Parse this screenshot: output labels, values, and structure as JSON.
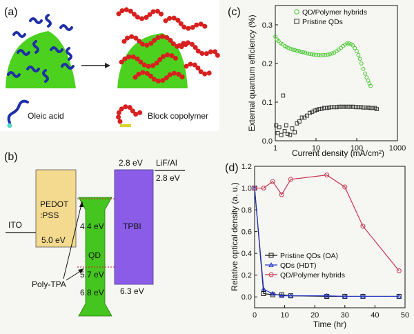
{
  "panel_a": {
    "label": "(a)",
    "legend_oleic": "Oleic acid",
    "legend_block": "Block copolymer",
    "colors": {
      "particle": "#4cd11e",
      "oleic": "#1f2fa8",
      "polymer": "#d82020",
      "head_oleic": "#58d8c8",
      "head_polymer": "#d8d82a"
    }
  },
  "panel_b": {
    "label": "(b)",
    "ito": "ITO",
    "pedot_line1": "PEDOT",
    "pedot_line2": ":PSS",
    "pedot_level": "5.0 eV",
    "qd": "QD",
    "qd_top": "4.4 eV",
    "qd_mid": "5.7 eV",
    "qd_bottom": "6.8 eV",
    "poly_tpa": "Poly-TPA",
    "tpbi": "TPBI",
    "tpbi_top": "2.8 eV",
    "tpbi_bottom": "6.3 eV",
    "lif": "LiF/Al",
    "lif_level": "2.8 eV",
    "colors": {
      "pedot": "#f3da8e",
      "qd": "#45c51f",
      "tpbi": "#8a5ce8",
      "dashed": "#c8192b"
    }
  },
  "chart_data": [
    {
      "type": "scatter",
      "panel_label": "(c)",
      "xlabel": "Current density (mA/cm²)",
      "ylabel": "External quantum efficiency (%)",
      "x_scale": "log",
      "xlim": [
        1,
        1000
      ],
      "ylim": [
        0,
        0.35
      ],
      "x_ticks": [
        "1",
        "10",
        "100",
        "1000"
      ],
      "y_ticks": [
        "0.0",
        "0.1",
        "0.2",
        "0.3"
      ],
      "legend_position": "top-right",
      "series": [
        {
          "name": "QD/Polymer hybrids",
          "color": "#48c832",
          "marker": "circle",
          "x": [
            1.0,
            1.1,
            1.2,
            1.35,
            1.5,
            1.7,
            1.9,
            2.1,
            2.4,
            2.7,
            3.0,
            3.4,
            3.8,
            4.3,
            4.8,
            5.4,
            6.1,
            6.9,
            7.8,
            8.8,
            10,
            11.5,
            13,
            15,
            17,
            19.5,
            22,
            25,
            28,
            32,
            36,
            41,
            46,
            52,
            58,
            65,
            72,
            80,
            90,
            100,
            110,
            120,
            130,
            145,
            160,
            175,
            190,
            205,
            220
          ],
          "y": [
            0.27,
            0.262,
            0.258,
            0.252,
            0.25,
            0.245,
            0.243,
            0.24,
            0.238,
            0.236,
            0.235,
            0.233,
            0.232,
            0.23,
            0.229,
            0.228,
            0.226,
            0.225,
            0.224,
            0.223,
            0.222,
            0.222,
            0.221,
            0.222,
            0.222,
            0.223,
            0.224,
            0.226,
            0.228,
            0.232,
            0.236,
            0.24,
            0.245,
            0.249,
            0.252,
            0.252,
            0.25,
            0.247,
            0.24,
            0.232,
            0.222,
            0.212,
            0.2,
            0.186,
            0.174,
            0.164,
            0.156,
            0.148,
            0.142
          ]
        },
        {
          "name": "Pristine QDs",
          "color": "#333333",
          "marker": "square",
          "x": [
            1.05,
            1.15,
            1.25,
            1.4,
            1.55,
            1.7,
            1.85,
            2.0,
            2.3,
            2.6,
            3.0,
            3.4,
            3.9,
            4.5,
            5.2,
            6.0,
            7.0,
            8.0,
            9.3,
            10.5,
            12,
            14,
            16,
            18.5,
            21,
            24,
            28,
            32,
            37,
            42,
            48,
            55,
            63,
            72,
            82,
            95,
            110,
            125,
            145,
            165,
            190,
            215,
            245,
            280,
            310
          ],
          "y": [
            0.04,
            0.02,
            0.035,
            0.015,
            0.117,
            0.025,
            0.04,
            0.018,
            0.015,
            0.032,
            0.022,
            0.045,
            0.05,
            0.06,
            0.06,
            0.065,
            0.072,
            0.075,
            0.078,
            0.08,
            0.082,
            0.083,
            0.085,
            0.085,
            0.086,
            0.087,
            0.087,
            0.087,
            0.088,
            0.088,
            0.088,
            0.088,
            0.088,
            0.088,
            0.088,
            0.087,
            0.087,
            0.087,
            0.086,
            0.086,
            0.086,
            0.085,
            0.085,
            0.085,
            0.082
          ]
        }
      ]
    },
    {
      "type": "line",
      "panel_label": "(d)",
      "xlabel": "Time (hr)",
      "ylabel": "Relative optical density (a. u.)",
      "xlim": [
        0,
        50
      ],
      "ylim": [
        -0.1,
        1.2
      ],
      "x_ticks": [
        "0",
        "10",
        "20",
        "30",
        "40",
        "50"
      ],
      "y_ticks": [
        "0.0",
        "0.2",
        "0.4",
        "0.6",
        "0.8",
        "1.0",
        "1.2"
      ],
      "legend_position": "bottom-left",
      "series": [
        {
          "name": "Pristine QDs (OA)",
          "color": "#111111",
          "marker": "square",
          "x": [
            0,
            3,
            6,
            9,
            12,
            24,
            30,
            36,
            48
          ],
          "y": [
            1.0,
            0.03,
            0.02,
            0.02,
            0.01,
            0.005,
            0.005,
            0.005,
            0.005
          ]
        },
        {
          "name": "QDs (HDT)",
          "color": "#2236c8",
          "marker": "triangle",
          "x": [
            0,
            3,
            6,
            9,
            12,
            24,
            30,
            36,
            48
          ],
          "y": [
            1.0,
            0.07,
            0.03,
            0.01,
            0.01,
            0.01,
            0.005,
            0.005,
            0.005
          ]
        },
        {
          "name": "QD/Polymer hybrids",
          "color": "#c83250",
          "marker": "circle",
          "x": [
            0,
            3,
            6,
            9,
            12,
            24,
            30,
            36,
            48
          ],
          "y": [
            1.0,
            1.0,
            1.06,
            0.94,
            1.08,
            1.12,
            1.01,
            0.65,
            0.24
          ]
        }
      ]
    }
  ]
}
